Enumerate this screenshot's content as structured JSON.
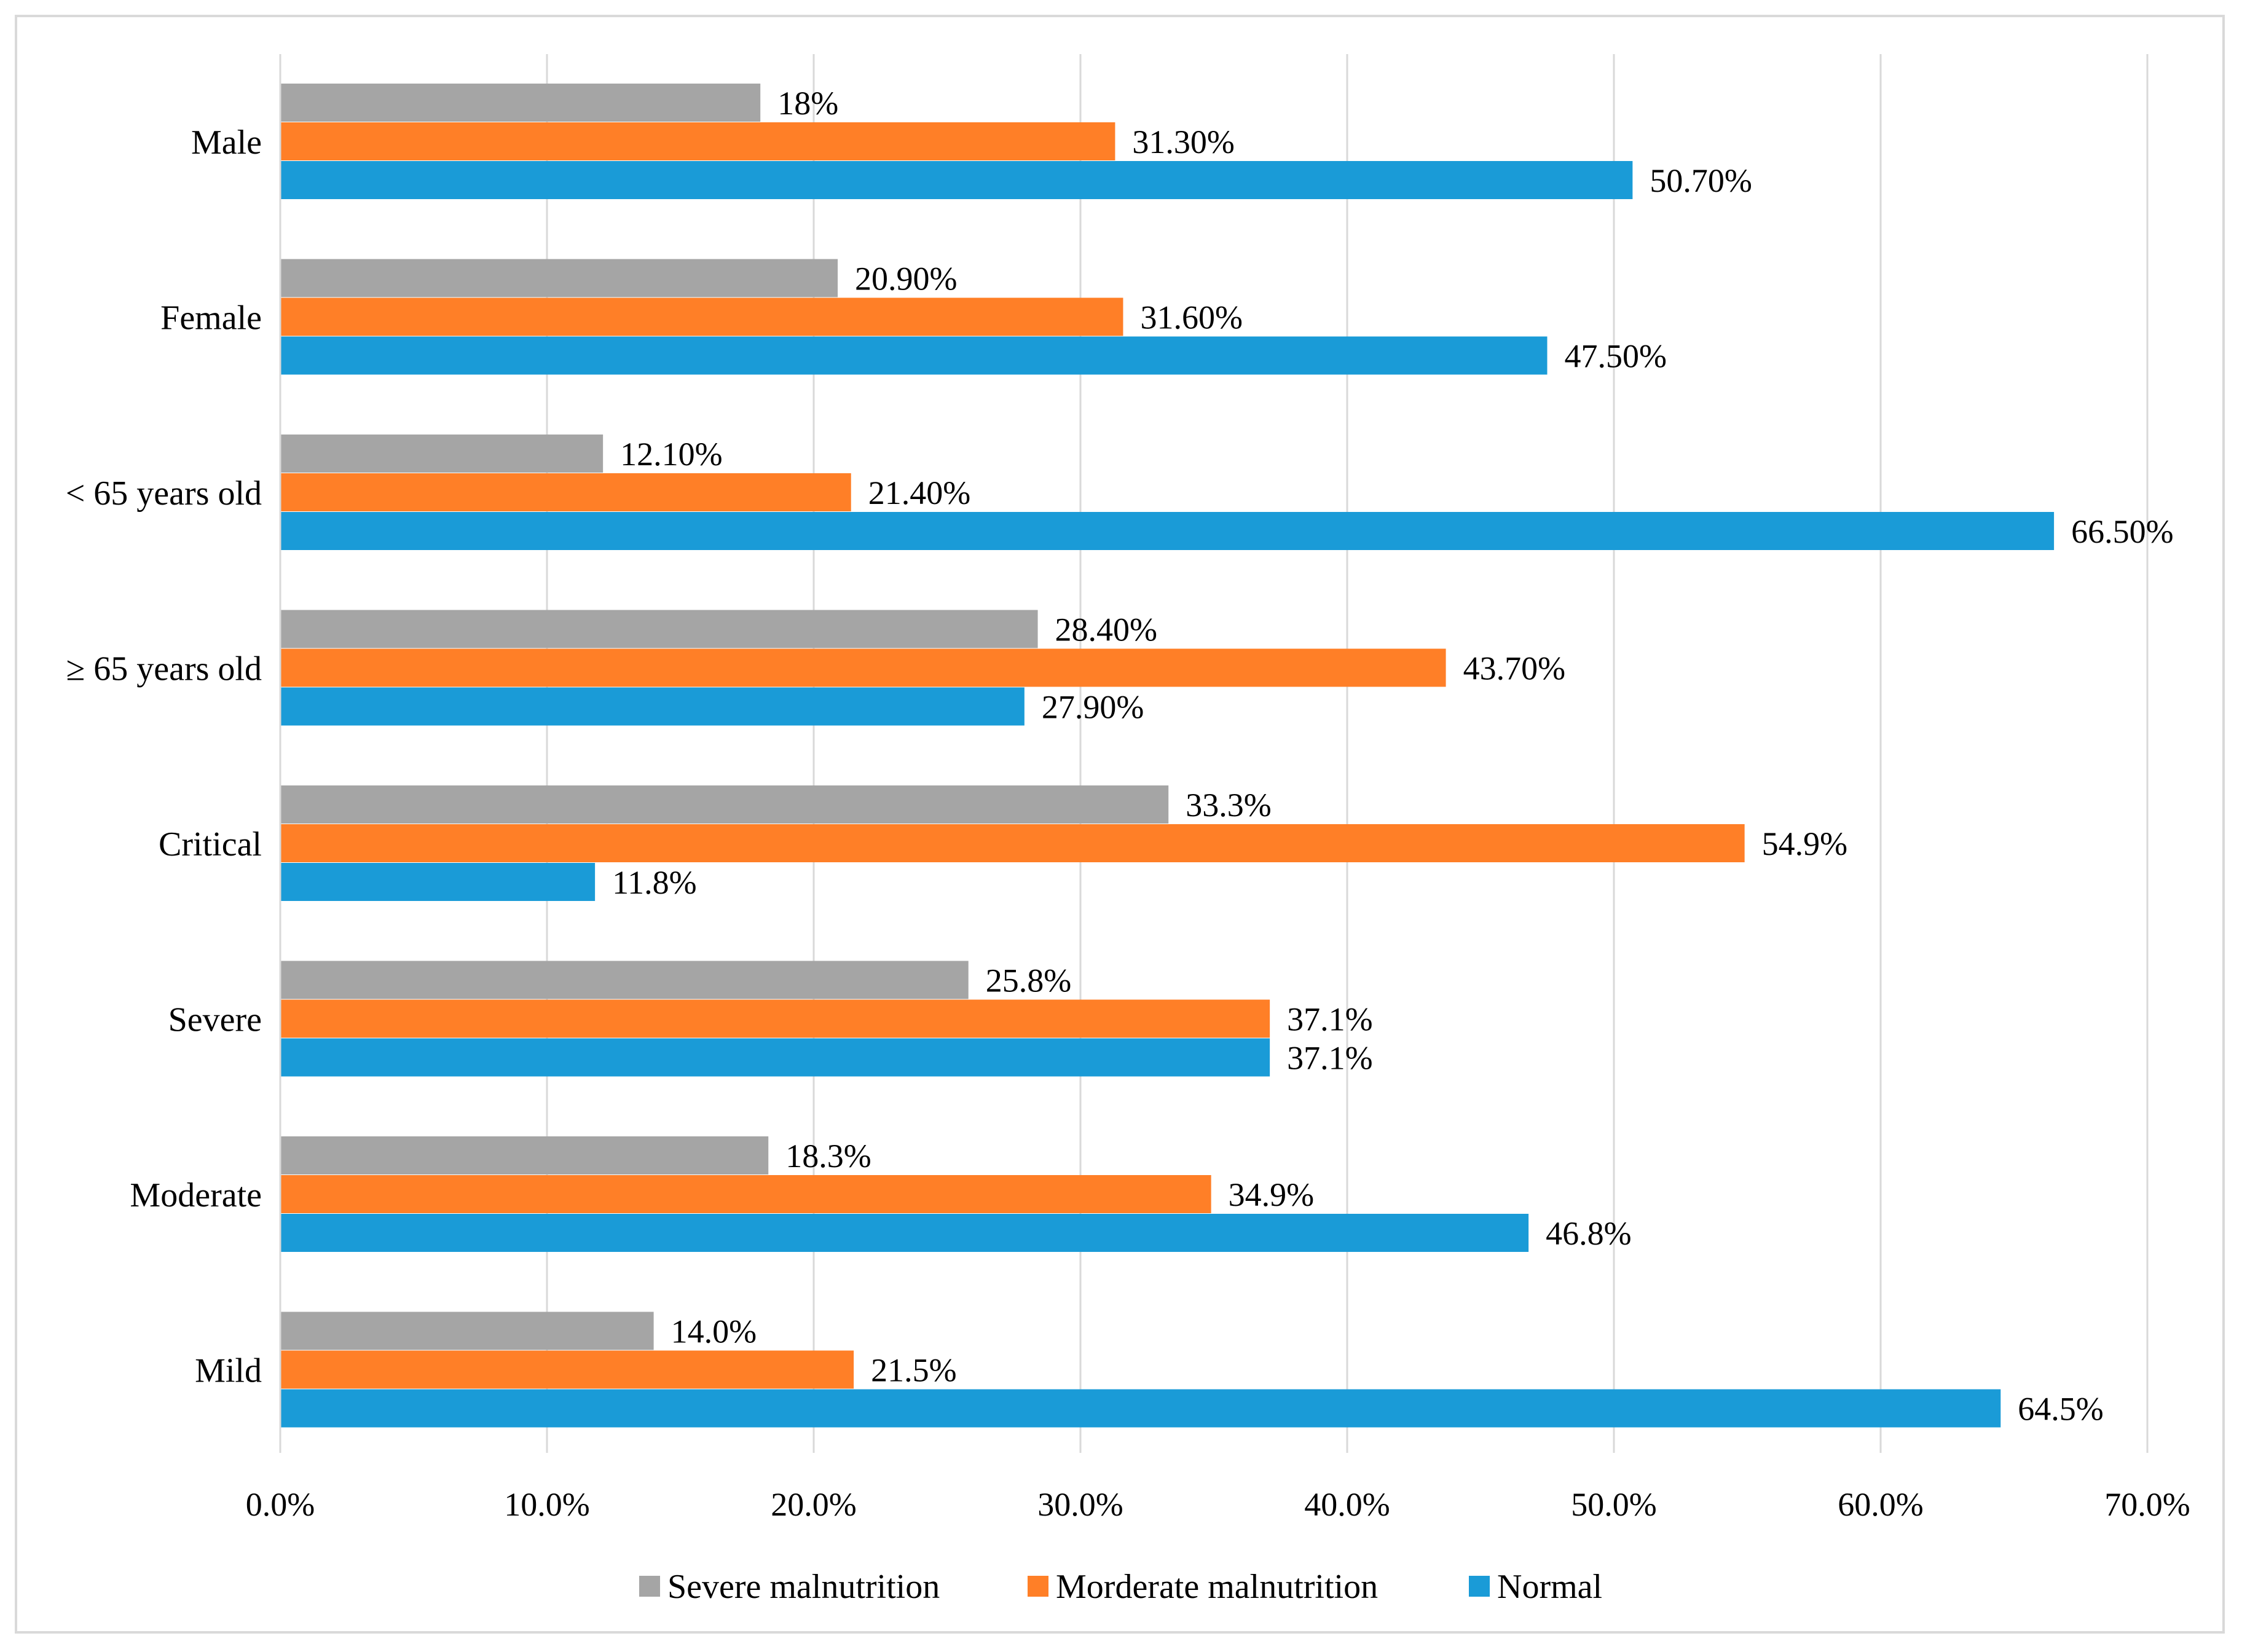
{
  "chart_data": {
    "type": "bar",
    "orientation": "horizontal",
    "categories": [
      "Male",
      "Female",
      "< 65 years old",
      "≥ 65 years old",
      "Critical",
      "Severe",
      "Moderate",
      "Mild"
    ],
    "series": [
      {
        "name": "Severe malnutrition",
        "color": "#a5a5a5",
        "values": [
          18.0,
          20.9,
          12.1,
          28.4,
          33.3,
          25.8,
          18.3,
          14.0
        ],
        "labels": [
          "18%",
          "20.90%",
          "12.10%",
          "28.40%",
          "33.3%",
          "25.8%",
          "18.3%",
          "14.0%"
        ]
      },
      {
        "name": "Morderate malnutrition",
        "color": "#ff7f27",
        "values": [
          31.3,
          31.6,
          21.4,
          43.7,
          54.9,
          37.1,
          34.9,
          21.5
        ],
        "labels": [
          "31.30%",
          "31.60%",
          "21.40%",
          "43.70%",
          "54.9%",
          "37.1%",
          "34.9%",
          "21.5%"
        ]
      },
      {
        "name": "Normal",
        "color": "#1a9bd7",
        "values": [
          50.7,
          47.5,
          66.5,
          27.9,
          11.8,
          37.1,
          46.8,
          64.5
        ],
        "labels": [
          "50.70%",
          "47.50%",
          "66.50%",
          "27.90%",
          "11.8%",
          "37.1%",
          "46.8%",
          "64.5%"
        ]
      }
    ],
    "xlim": [
      0,
      70
    ],
    "x_ticks": [
      "0.0%",
      "10.0%",
      "20.0%",
      "30.0%",
      "40.0%",
      "50.0%",
      "60.0%",
      "70.0%"
    ],
    "x_tick_values": [
      0,
      10,
      20,
      30,
      40,
      50,
      60,
      70
    ],
    "grid": "vertical",
    "legend_position": "bottom"
  }
}
